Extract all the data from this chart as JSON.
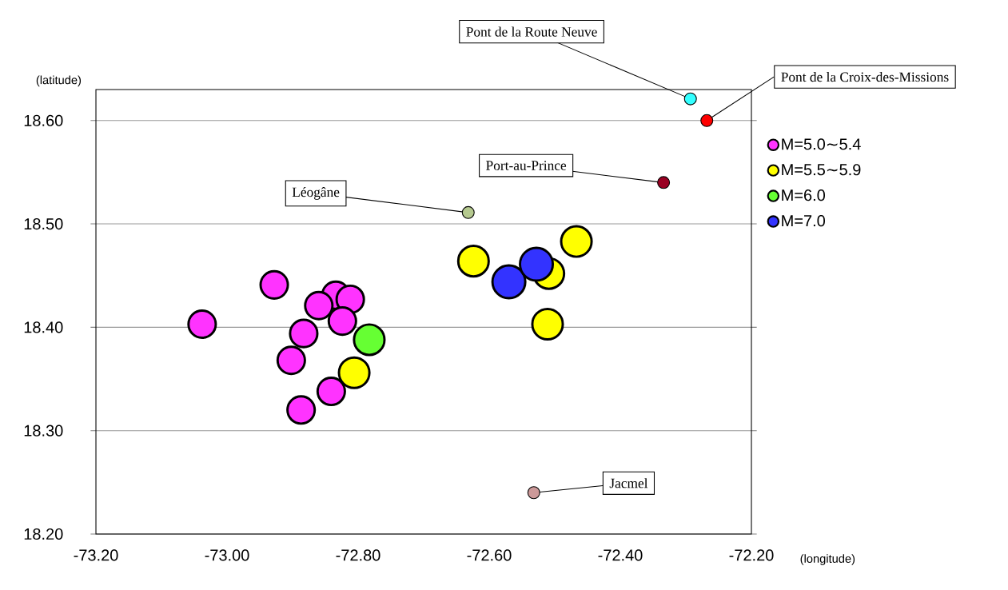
{
  "chart_data": {
    "type": "bubble",
    "xlabel": "(longitude)",
    "ylabel": "(latitude)",
    "xlim": [
      -73.2,
      -72.2
    ],
    "ylim": [
      18.2,
      18.63
    ],
    "xticks": [
      {
        "value": -73.2,
        "label": "-73.20"
      },
      {
        "value": -73.0,
        "label": "-73.00"
      },
      {
        "value": -72.8,
        "label": "-72.80"
      },
      {
        "value": -72.6,
        "label": "-72.60"
      },
      {
        "value": -72.4,
        "label": "-72.40"
      },
      {
        "value": -72.2,
        "label": "-72.20"
      }
    ],
    "yticks": [
      {
        "value": 18.2,
        "label": "18.20"
      },
      {
        "value": 18.3,
        "label": "18.30"
      },
      {
        "value": 18.4,
        "label": "18.40"
      },
      {
        "value": 18.5,
        "label": "18.50"
      },
      {
        "value": 18.6,
        "label": "18.60"
      }
    ],
    "grid": "y",
    "legend": "right",
    "marker": "circle",
    "series": [
      {
        "name": "M=5.0∼5.4",
        "color": "#ff33ff",
        "x": [
          -73.038,
          -72.928,
          -72.834,
          -72.86,
          -72.812,
          -72.824,
          -72.883,
          -72.902,
          -72.841,
          -72.887
        ],
        "values": [
          18.403,
          18.441,
          18.431,
          18.421,
          18.427,
          18.406,
          18.394,
          18.368,
          18.338,
          18.32
        ],
        "sizes": [
          0.71,
          0.71,
          0.71,
          0.71,
          0.71,
          0.71,
          0.71,
          0.71,
          0.71,
          0.71
        ]
      },
      {
        "name": "M=5.5∼5.9",
        "color": "#ffff00",
        "x": [
          -72.806,
          -72.624,
          -72.509,
          -72.467,
          -72.511
        ],
        "values": [
          18.356,
          18.464,
          18.452,
          18.483,
          18.403
        ],
        "sizes": [
          0.87,
          0.87,
          0.87,
          0.87,
          0.87
        ]
      },
      {
        "name": "M=6.0",
        "color": "#66ff33",
        "x": [
          -72.783
        ],
        "values": [
          18.388
        ],
        "sizes": [
          0.87
        ]
      },
      {
        "name": "M=7.0",
        "color": "#3333ff",
        "x": [
          -72.57,
          -72.528
        ],
        "values": [
          18.444,
          18.461
        ],
        "sizes": [
          1,
          1
        ]
      },
      {
        "type": "scatter",
        "colors": [
          "#33ffff",
          "#ff0000",
          "#990022",
          "#b5c98f",
          "#cc9999"
        ],
        "x": [
          -72.293,
          -72.268,
          -72.334,
          -72.632,
          -72.532
        ],
        "values": [
          18.621,
          18.6,
          18.54,
          18.511,
          18.24
        ]
      }
    ],
    "annotations": [
      {
        "text": "Pont de la Route Neuve",
        "x": -72.293,
        "y": 18.621
      },
      {
        "text": "Pont de la Croix-des-Missions",
        "x": -72.268,
        "y": 18.6
      },
      {
        "text": "Port-au-Prince",
        "x": -72.334,
        "y": 18.54
      },
      {
        "text": "Léogâne",
        "x": -72.632,
        "y": 18.511
      },
      {
        "text": "Jacmel",
        "x": -72.532,
        "y": 18.24
      }
    ]
  }
}
